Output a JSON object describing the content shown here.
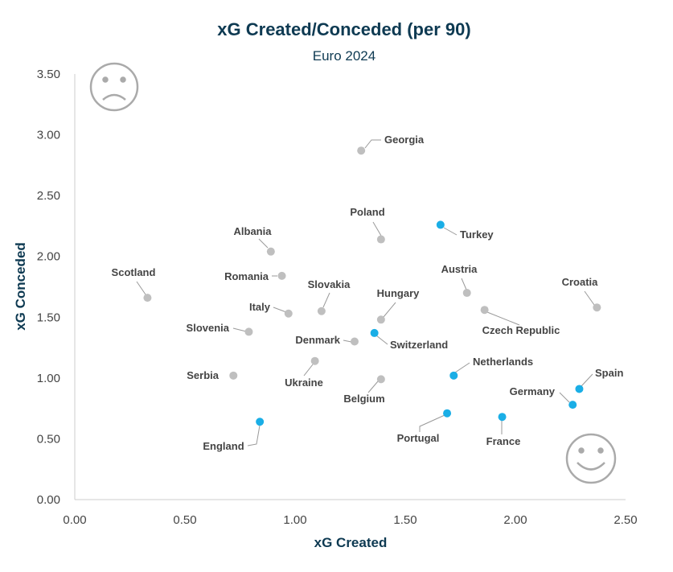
{
  "chart_data": {
    "type": "scatter",
    "title": "xG Created/Conceded (per 90)",
    "subtitle": "Euro 2024",
    "xlabel": "xG Created",
    "ylabel": "xG Conceded",
    "xlim": [
      0,
      2.5
    ],
    "ylim": [
      0,
      3.5
    ],
    "xticks": [
      "0.00",
      "0.50",
      "1.00",
      "1.50",
      "2.00",
      "2.50"
    ],
    "yticks": [
      "0.00",
      "0.50",
      "1.00",
      "1.50",
      "2.00",
      "2.50",
      "3.00",
      "3.50"
    ],
    "grid": false,
    "colors": {
      "highlight": "#1aaee6",
      "other": "#bfbfbf"
    },
    "points": [
      {
        "team": "Georgia",
        "x": 1.3,
        "y": 2.87,
        "highlight": false
      },
      {
        "team": "Poland",
        "x": 1.39,
        "y": 2.14,
        "highlight": false
      },
      {
        "team": "Turkey",
        "x": 1.66,
        "y": 2.26,
        "highlight": true
      },
      {
        "team": "Albania",
        "x": 0.89,
        "y": 2.04,
        "highlight": false
      },
      {
        "team": "Romania",
        "x": 0.94,
        "y": 1.84,
        "highlight": false
      },
      {
        "team": "Scotland",
        "x": 0.33,
        "y": 1.66,
        "highlight": false
      },
      {
        "team": "Slovakia",
        "x": 1.12,
        "y": 1.55,
        "highlight": false
      },
      {
        "team": "Italy",
        "x": 0.97,
        "y": 1.53,
        "highlight": false
      },
      {
        "team": "Hungary",
        "x": 1.39,
        "y": 1.48,
        "highlight": false
      },
      {
        "team": "Austria",
        "x": 1.78,
        "y": 1.7,
        "highlight": false
      },
      {
        "team": "Croatia",
        "x": 2.37,
        "y": 1.58,
        "highlight": false
      },
      {
        "team": "Czech Republic",
        "x": 1.86,
        "y": 1.56,
        "highlight": false
      },
      {
        "team": "Slovenia",
        "x": 0.79,
        "y": 1.38,
        "highlight": false
      },
      {
        "team": "Denmark",
        "x": 1.27,
        "y": 1.3,
        "highlight": false
      },
      {
        "team": "Switzerland",
        "x": 1.36,
        "y": 1.37,
        "highlight": true
      },
      {
        "team": "Ukraine",
        "x": 1.09,
        "y": 1.14,
        "highlight": false
      },
      {
        "team": "Serbia",
        "x": 0.72,
        "y": 1.02,
        "highlight": false
      },
      {
        "team": "Netherlands",
        "x": 1.72,
        "y": 1.02,
        "highlight": true
      },
      {
        "team": "Belgium",
        "x": 1.39,
        "y": 0.99,
        "highlight": false
      },
      {
        "team": "Spain",
        "x": 2.29,
        "y": 0.91,
        "highlight": true
      },
      {
        "team": "Germany",
        "x": 2.26,
        "y": 0.78,
        "highlight": true
      },
      {
        "team": "Portugal",
        "x": 1.69,
        "y": 0.71,
        "highlight": true
      },
      {
        "team": "France",
        "x": 1.94,
        "y": 0.68,
        "highlight": true
      },
      {
        "team": "England",
        "x": 0.84,
        "y": 0.64,
        "highlight": true
      }
    ]
  }
}
